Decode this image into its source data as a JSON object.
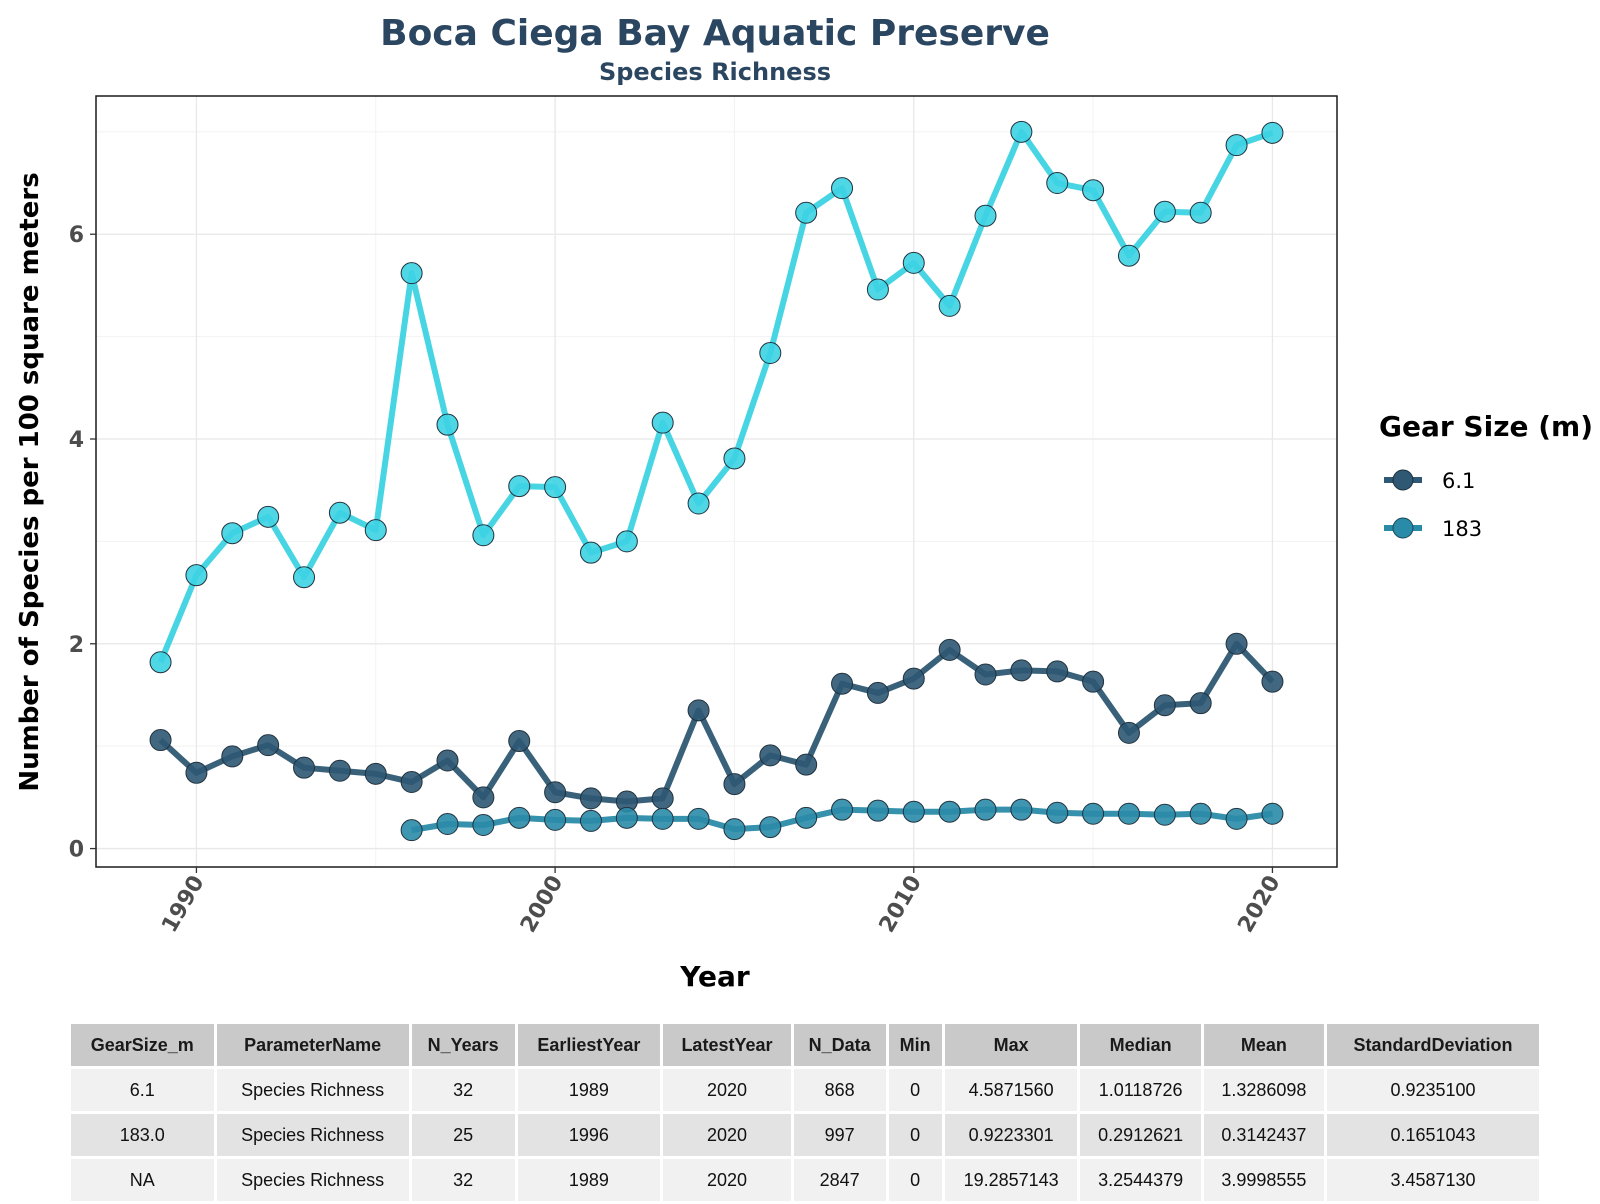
{
  "chart_data": {
    "type": "line",
    "title": "Boca Ciega Bay Aquatic Preserve",
    "subtitle": "Species Richness",
    "xlabel": "Year",
    "ylabel": "Number of Species per 100 square meters",
    "xlim": [
      1987.2,
      2021.8
    ],
    "ylim": [
      -0.18,
      7.35
    ],
    "x_ticks": [
      1990,
      2000,
      2010,
      2020
    ],
    "y_ticks": [
      0,
      2,
      4,
      6
    ],
    "legend_title": "Gear Size (m)",
    "legend_position": "right",
    "grid": true,
    "series": [
      {
        "name": "6.1",
        "color": "#2e5873",
        "x": [
          1989,
          1990,
          1991,
          1992,
          1993,
          1994,
          1995,
          1996,
          1997,
          1998,
          1999,
          2000,
          2001,
          2002,
          2003,
          2004,
          2005,
          2006,
          2007,
          2008,
          2009,
          2010,
          2011,
          2012,
          2013,
          2014,
          2015,
          2016,
          2017,
          2018,
          2019,
          2020
        ],
        "y": [
          1.06,
          0.74,
          0.9,
          1.01,
          0.79,
          0.76,
          0.73,
          0.65,
          0.86,
          0.5,
          1.05,
          0.55,
          0.49,
          0.46,
          0.49,
          1.35,
          0.63,
          0.91,
          0.82,
          1.61,
          1.52,
          1.66,
          1.94,
          1.7,
          1.74,
          1.73,
          1.63,
          1.13,
          1.4,
          1.42,
          2.0,
          1.63
        ]
      },
      {
        "name": "183",
        "color": "#2a8ba8",
        "x": [
          1996,
          1997,
          1998,
          1999,
          2000,
          2001,
          2002,
          2003,
          2004,
          2005,
          2006,
          2007,
          2008,
          2009,
          2010,
          2011,
          2012,
          2013,
          2014,
          2015,
          2016,
          2017,
          2018,
          2019,
          2020
        ],
        "y": [
          0.18,
          0.24,
          0.23,
          0.3,
          0.28,
          0.27,
          0.3,
          0.29,
          0.29,
          0.19,
          0.21,
          0.3,
          0.38,
          0.37,
          0.36,
          0.36,
          0.38,
          0.38,
          0.35,
          0.34,
          0.34,
          0.33,
          0.34,
          0.29,
          0.34
        ]
      },
      {
        "name": "",
        "color": "#3dd3e3",
        "x": [
          1989,
          1990,
          1991,
          1992,
          1993,
          1994,
          1995,
          1996,
          1997,
          1998,
          1999,
          2000,
          2001,
          2002,
          2003,
          2004,
          2005,
          2006,
          2007,
          2008,
          2009,
          2010,
          2011,
          2012,
          2013,
          2014,
          2015,
          2016,
          2017,
          2018,
          2019,
          2020
        ],
        "y": [
          1.82,
          2.67,
          3.08,
          3.24,
          2.65,
          3.28,
          3.11,
          5.62,
          4.14,
          3.06,
          3.54,
          3.53,
          2.89,
          3.0,
          4.16,
          3.37,
          3.81,
          4.84,
          6.21,
          6.45,
          5.46,
          5.72,
          5.3,
          6.18,
          7.0,
          6.5,
          6.43,
          5.79,
          6.22,
          6.21,
          6.87,
          6.99
        ]
      }
    ]
  },
  "table": {
    "headers": [
      "GearSize_m",
      "ParameterName",
      "N_Years",
      "EarliestYear",
      "LatestYear",
      "N_Data",
      "Min",
      "Max",
      "Median",
      "Mean",
      "StandardDeviation"
    ],
    "rows": [
      [
        "6.1",
        "Species Richness",
        "32",
        "1989",
        "2020",
        "868",
        "0",
        "4.5871560",
        "1.0118726",
        "1.3286098",
        "0.9235100"
      ],
      [
        "183.0",
        "Species Richness",
        "25",
        "1996",
        "2020",
        "997",
        "0",
        "0.9223301",
        "0.2912621",
        "0.3142437",
        "0.1651043"
      ],
      [
        "NA",
        "Species Richness",
        "32",
        "1989",
        "2020",
        "2847",
        "0",
        "19.2857143",
        "3.2544379",
        "3.9998555",
        "3.4587130"
      ]
    ]
  }
}
